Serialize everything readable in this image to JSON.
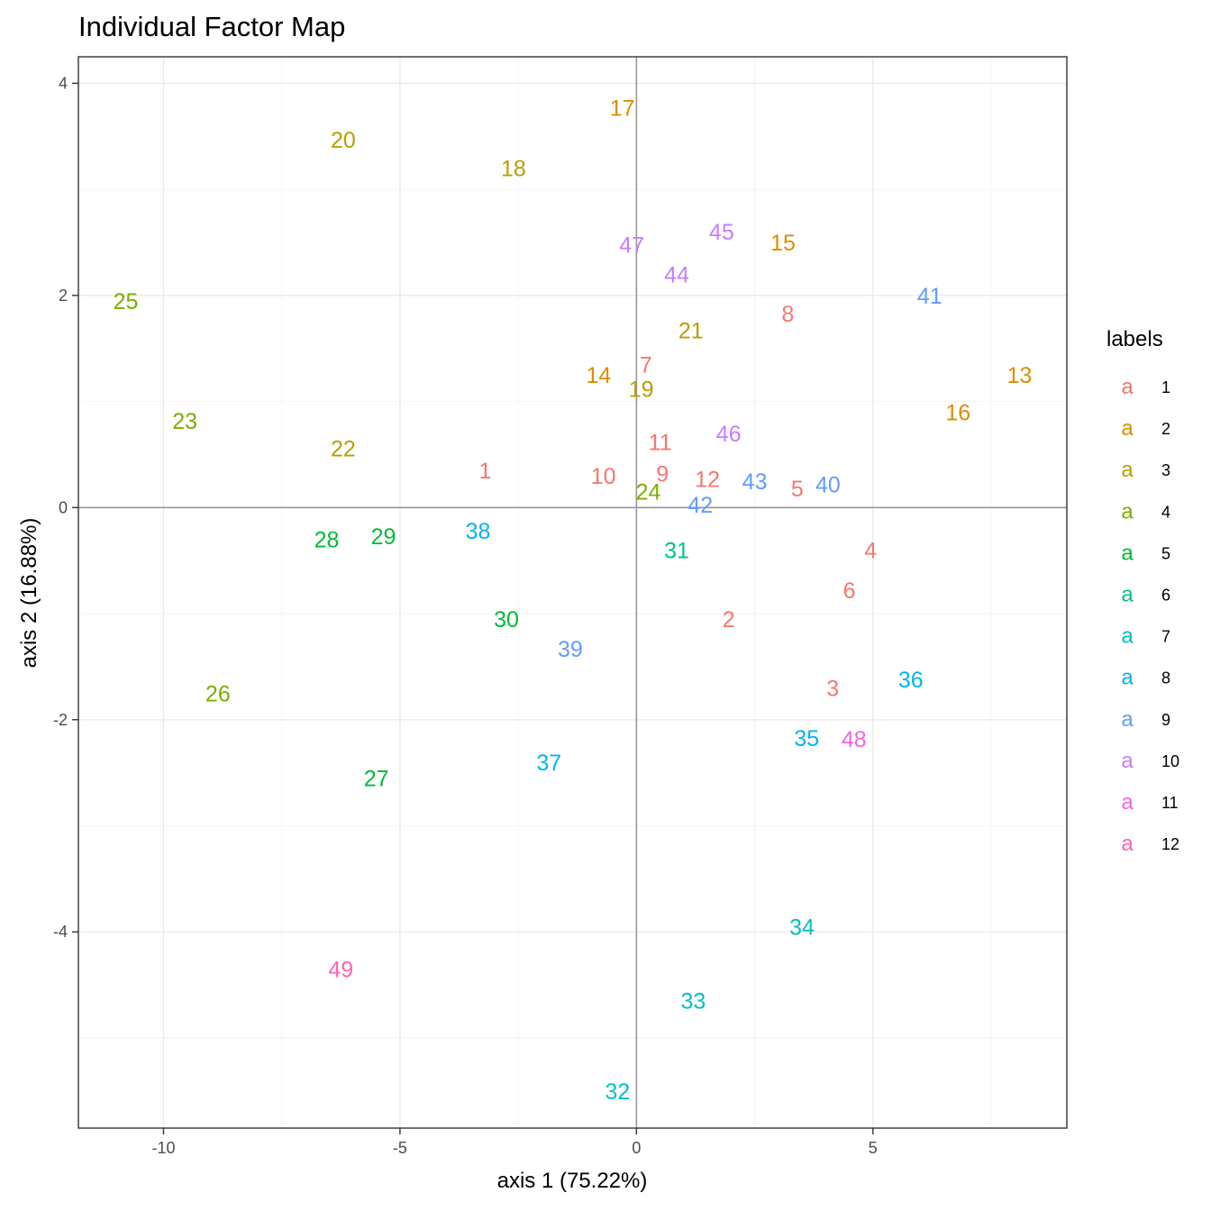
{
  "chart_data": {
    "type": "scatter",
    "title": "Individual Factor Map",
    "xlabel": "axis 1 (75.22%)",
    "ylabel": "axis 2 (16.88%)",
    "xlim": [
      -11.8,
      9.1
    ],
    "ylim": [
      -5.85,
      4.25
    ],
    "x_ticks": [
      -10,
      -5,
      0,
      5
    ],
    "y_ticks": [
      -4,
      -2,
      0,
      2,
      4
    ],
    "x_tick_labels": [
      "-10",
      "-5",
      "0",
      "5"
    ],
    "y_tick_labels": [
      "-4",
      "-2",
      "0",
      "2",
      "4"
    ],
    "grid": true,
    "legend": {
      "title": "labels",
      "position": "right",
      "key_glyph": "a",
      "entries": [
        "1",
        "2",
        "3",
        "4",
        "5",
        "6",
        "7",
        "8",
        "9",
        "10",
        "11",
        "12"
      ],
      "colors": [
        "#F8766D",
        "#DE8C00",
        "#B79F00",
        "#7CAE00",
        "#00BA38",
        "#00C08B",
        "#00BFC4",
        "#00B4F0",
        "#619CFF",
        "#C77CFF",
        "#F564E3",
        "#FF64B0"
      ]
    },
    "points": [
      {
        "label": "1",
        "x": -3.2,
        "y": 0.35,
        "group": 1
      },
      {
        "label": "2",
        "x": 1.95,
        "y": -1.05,
        "group": 1
      },
      {
        "label": "3",
        "x": 4.15,
        "y": -1.7,
        "group": 1
      },
      {
        "label": "4",
        "x": 4.95,
        "y": -0.4,
        "group": 1
      },
      {
        "label": "5",
        "x": 3.4,
        "y": 0.18,
        "group": 1
      },
      {
        "label": "6",
        "x": 4.5,
        "y": -0.78,
        "group": 1
      },
      {
        "label": "7",
        "x": 0.2,
        "y": 1.35,
        "group": 1
      },
      {
        "label": "8",
        "x": 3.2,
        "y": 1.83,
        "group": 1
      },
      {
        "label": "9",
        "x": 0.55,
        "y": 0.32,
        "group": 1
      },
      {
        "label": "10",
        "x": -0.7,
        "y": 0.3,
        "group": 1
      },
      {
        "label": "11",
        "x": 0.5,
        "y": 0.62,
        "group": 1
      },
      {
        "label": "12",
        "x": 1.5,
        "y": 0.27,
        "group": 1
      },
      {
        "label": "13",
        "x": 8.1,
        "y": 1.25,
        "group": 2
      },
      {
        "label": "14",
        "x": -0.8,
        "y": 1.25,
        "group": 2
      },
      {
        "label": "15",
        "x": 3.1,
        "y": 2.5,
        "group": 2
      },
      {
        "label": "16",
        "x": 6.8,
        "y": 0.9,
        "group": 2
      },
      {
        "label": "17",
        "x": -0.3,
        "y": 3.77,
        "group": 2
      },
      {
        "label": "18",
        "x": -2.6,
        "y": 3.2,
        "group": 3
      },
      {
        "label": "19",
        "x": 0.1,
        "y": 1.12,
        "group": 3
      },
      {
        "label": "20",
        "x": -6.2,
        "y": 3.47,
        "group": 3
      },
      {
        "label": "21",
        "x": 1.15,
        "y": 1.67,
        "group": 3
      },
      {
        "label": "22",
        "x": -6.2,
        "y": 0.56,
        "group": 3
      },
      {
        "label": "23",
        "x": -9.55,
        "y": 0.82,
        "group": 4
      },
      {
        "label": "24",
        "x": 0.25,
        "y": 0.15,
        "group": 4
      },
      {
        "label": "25",
        "x": -10.8,
        "y": 1.95,
        "group": 4
      },
      {
        "label": "26",
        "x": -8.85,
        "y": -1.75,
        "group": 4
      },
      {
        "label": "27",
        "x": -5.5,
        "y": -2.55,
        "group": 5
      },
      {
        "label": "28",
        "x": -6.55,
        "y": -0.3,
        "group": 5
      },
      {
        "label": "29",
        "x": -5.35,
        "y": -0.27,
        "group": 5
      },
      {
        "label": "30",
        "x": -2.75,
        "y": -1.05,
        "group": 5
      },
      {
        "label": "31",
        "x": 0.85,
        "y": -0.4,
        "group": 6
      },
      {
        "label": "32",
        "x": -0.4,
        "y": -5.5,
        "group": 7
      },
      {
        "label": "33",
        "x": 1.2,
        "y": -4.65,
        "group": 7
      },
      {
        "label": "34",
        "x": 3.5,
        "y": -3.95,
        "group": 7
      },
      {
        "label": "35",
        "x": 3.6,
        "y": -2.17,
        "group": 8
      },
      {
        "label": "36",
        "x": 5.8,
        "y": -1.62,
        "group": 8
      },
      {
        "label": "37",
        "x": -1.85,
        "y": -2.4,
        "group": 8
      },
      {
        "label": "38",
        "x": -3.35,
        "y": -0.22,
        "group": 8
      },
      {
        "label": "39",
        "x": -1.4,
        "y": -1.33,
        "group": 9
      },
      {
        "label": "40",
        "x": 4.05,
        "y": 0.22,
        "group": 9
      },
      {
        "label": "41",
        "x": 6.2,
        "y": 2.0,
        "group": 9
      },
      {
        "label": "42",
        "x": 1.35,
        "y": 0.03,
        "group": 9
      },
      {
        "label": "43",
        "x": 2.5,
        "y": 0.25,
        "group": 9
      },
      {
        "label": "44",
        "x": 0.85,
        "y": 2.2,
        "group": 10
      },
      {
        "label": "45",
        "x": 1.8,
        "y": 2.6,
        "group": 10
      },
      {
        "label": "46",
        "x": 1.95,
        "y": 0.7,
        "group": 10
      },
      {
        "label": "47",
        "x": -0.1,
        "y": 2.48,
        "group": 10
      },
      {
        "label": "48",
        "x": 4.6,
        "y": -2.18,
        "group": 11
      },
      {
        "label": "49",
        "x": -6.25,
        "y": -4.35,
        "group": 12
      }
    ]
  }
}
